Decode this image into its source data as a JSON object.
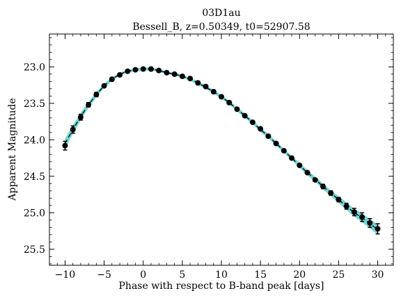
{
  "chart_data": {
    "type": "scatter",
    "title_line1": "03D1au",
    "title_line2": "Bessell_B, z=0.50349, t0=52907.58",
    "xlabel": "Phase with respect to B-band peak [days]",
    "ylabel": "Apparent Magnitude",
    "xlim": [
      -12,
      32
    ],
    "ylim": [
      25.72,
      22.55
    ],
    "y_inverted": true,
    "x_ticks": [
      -10,
      -5,
      0,
      5,
      10,
      15,
      20,
      25,
      30
    ],
    "x_tick_labels": [
      "−10",
      "−5",
      "0",
      "5",
      "10",
      "15",
      "20",
      "25",
      "30"
    ],
    "y_ticks": [
      23.0,
      23.5,
      24.0,
      24.5,
      25.0,
      25.5
    ],
    "y_tick_labels": [
      "23.0",
      "23.5",
      "24.0",
      "24.5",
      "25.0",
      "25.5"
    ],
    "grid": false,
    "colors": {
      "points": "#000000",
      "band": "#5fcfcf",
      "model": "#000000"
    },
    "model_curve": {
      "x": [
        -10,
        -9,
        -8,
        -7,
        -6,
        -5,
        -4,
        -3,
        -2,
        -1,
        0,
        1,
        2,
        3,
        4,
        5,
        6,
        7,
        8,
        9,
        10,
        11,
        12,
        13,
        14,
        15,
        16,
        17,
        18,
        19,
        20,
        21,
        22,
        23,
        24,
        25,
        26,
        27,
        28,
        29,
        30
      ],
      "y": [
        24.05,
        23.86,
        23.68,
        23.52,
        23.38,
        23.26,
        23.17,
        23.1,
        23.06,
        23.04,
        23.03,
        23.03,
        23.05,
        23.08,
        23.1,
        23.13,
        23.17,
        23.22,
        23.28,
        23.34,
        23.41,
        23.49,
        23.58,
        23.67,
        23.76,
        23.86,
        23.95,
        24.05,
        24.15,
        24.25,
        24.35,
        24.45,
        24.54,
        24.64,
        24.73,
        24.82,
        24.91,
        25.0,
        25.07,
        25.15,
        25.23
      ],
      "band_halfwidth": [
        0.07,
        0.06,
        0.05,
        0.04,
        0.035,
        0.03,
        0.025,
        0.02,
        0.02,
        0.02,
        0.02,
        0.02,
        0.02,
        0.02,
        0.02,
        0.02,
        0.02,
        0.025,
        0.025,
        0.025,
        0.025,
        0.025,
        0.03,
        0.03,
        0.03,
        0.03,
        0.03,
        0.03,
        0.03,
        0.03,
        0.035,
        0.035,
        0.035,
        0.04,
        0.04,
        0.045,
        0.05,
        0.055,
        0.06,
        0.065,
        0.07
      ]
    },
    "points": {
      "x": [
        -10,
        -9,
        -8,
        -7,
        -6,
        -5,
        -4,
        -3,
        -2,
        -1,
        0,
        1,
        2,
        3,
        4,
        5,
        6,
        7,
        8,
        9,
        10,
        11,
        12,
        13,
        14,
        15,
        16,
        17,
        18,
        19,
        20,
        21,
        22,
        23,
        24,
        25,
        26,
        27,
        28,
        29,
        30
      ],
      "y": [
        24.08,
        23.86,
        23.69,
        23.52,
        23.38,
        23.26,
        23.17,
        23.11,
        23.06,
        23.04,
        23.03,
        23.03,
        23.05,
        23.08,
        23.1,
        23.13,
        23.16,
        23.22,
        23.27,
        23.34,
        23.41,
        23.49,
        23.58,
        23.67,
        23.76,
        23.85,
        23.95,
        24.05,
        24.15,
        24.25,
        24.35,
        24.45,
        24.55,
        24.64,
        24.73,
        24.82,
        24.91,
        24.99,
        25.06,
        25.14,
        25.22
      ],
      "yerr": [
        0.06,
        0.05,
        0.04,
        0.03,
        0.03,
        0.02,
        0.02,
        0.02,
        0.02,
        0.02,
        0.02,
        0.02,
        0.02,
        0.02,
        0.02,
        0.02,
        0.02,
        0.02,
        0.02,
        0.02,
        0.02,
        0.02,
        0.02,
        0.02,
        0.02,
        0.02,
        0.02,
        0.02,
        0.02,
        0.02,
        0.02,
        0.02,
        0.02,
        0.03,
        0.03,
        0.03,
        0.04,
        0.05,
        0.06,
        0.06,
        0.07
      ]
    }
  }
}
